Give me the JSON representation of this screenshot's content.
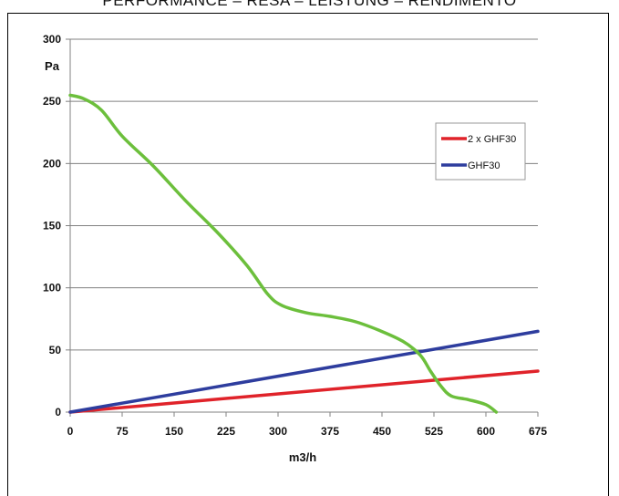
{
  "page": {
    "title": "PERFORMANCE – RESA – LEISTUNG – RENDIMENTO"
  },
  "colors": {
    "grid": "#808080",
    "axis": "#808080",
    "fan_curve": "#6cbf3c",
    "system_2x": "#e0232a",
    "system_1x": "#2e3d9e"
  },
  "chart_data": {
    "type": "line",
    "title": "PERFORMANCE – RESA – LEISTUNG – RENDIMENTO",
    "xlabel": "m3/h",
    "ylabel": "Pa",
    "xlim": [
      0,
      675
    ],
    "ylim": [
      0,
      300
    ],
    "x_ticks": [
      "0",
      "75",
      "150",
      "225",
      "300",
      "375",
      "450",
      "525",
      "600",
      "675"
    ],
    "y_ticks": [
      "0",
      "50",
      "100",
      "150",
      "200",
      "250",
      "300"
    ],
    "grid": "horizontal",
    "legend_position": "right",
    "series": [
      {
        "name": "",
        "color": "#6cbf3c",
        "points": [
          [
            0,
            255
          ],
          [
            20,
            252
          ],
          [
            45,
            243
          ],
          [
            75,
            222
          ],
          [
            120,
            198
          ],
          [
            165,
            171
          ],
          [
            215,
            143
          ],
          [
            255,
            118
          ],
          [
            285,
            95
          ],
          [
            305,
            86
          ],
          [
            340,
            80
          ],
          [
            375,
            77
          ],
          [
            410,
            73
          ],
          [
            445,
            66
          ],
          [
            480,
            57
          ],
          [
            505,
            46
          ],
          [
            520,
            33
          ],
          [
            535,
            21
          ],
          [
            550,
            13
          ],
          [
            575,
            10
          ],
          [
            600,
            6
          ],
          [
            615,
            0
          ]
        ]
      },
      {
        "name": "2 x GHF30",
        "color": "#e0232a",
        "points": [
          [
            0,
            0
          ],
          [
            675,
            33
          ]
        ]
      },
      {
        "name": "GHF30",
        "color": "#2e3d9e",
        "points": [
          [
            0,
            0
          ],
          [
            675,
            65
          ]
        ]
      }
    ]
  }
}
